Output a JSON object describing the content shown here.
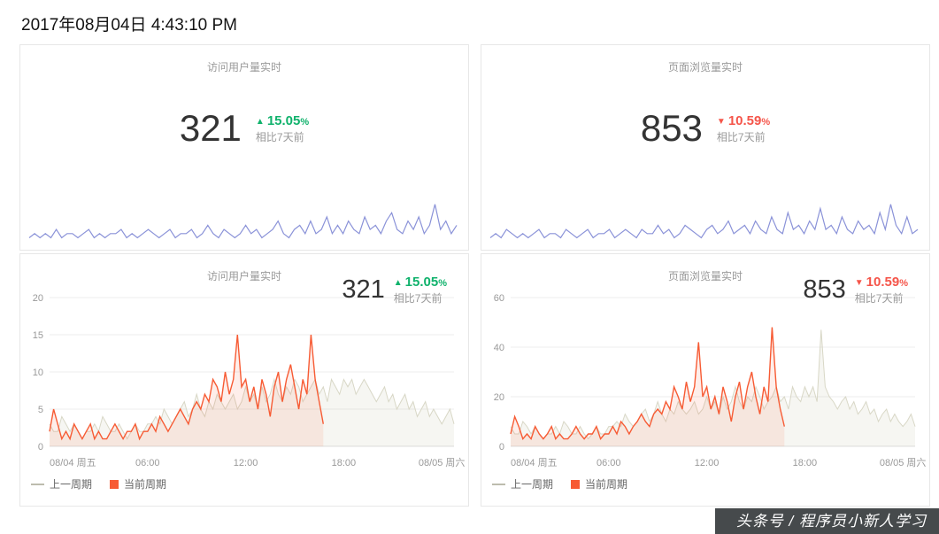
{
  "header": {
    "timestamp": "2017年08月04日 4:43:10 PM"
  },
  "watermark": {
    "text": "头条号 / 程序员小新人学习"
  },
  "icons": {
    "up": "▲",
    "down": "▼"
  },
  "colors": {
    "up": "#10b26c",
    "down": "#f5554a",
    "current": "#f75b34",
    "previous": "#d8d7c6",
    "previous_legend": "#bdbcae",
    "spark": "#8a92d8"
  },
  "kpi": {
    "visitors": {
      "title": "访问用户量实时",
      "value": "321",
      "delta": "15.05",
      "unit": "%",
      "direction": "up",
      "compare": "相比7天前"
    },
    "pageviews": {
      "title": "页面浏览量实时",
      "value": "853",
      "delta": "10.59",
      "unit": "%",
      "direction": "down",
      "compare": "相比7天前"
    }
  },
  "legend": {
    "previous": "上一周期",
    "current": "当前周期"
  },
  "chart_data": [
    {
      "type": "line",
      "title": "访问用户量实时",
      "color_key": "spark",
      "ylim": [
        0,
        11
      ],
      "grid": false,
      "series": [
        {
          "name": "访问用户量",
          "values": [
            2,
            3,
            2,
            3,
            2,
            4,
            2,
            3,
            3,
            2,
            3,
            4,
            2,
            3,
            2,
            3,
            3,
            4,
            2,
            3,
            2,
            3,
            4,
            3,
            2,
            3,
            4,
            2,
            3,
            3,
            4,
            2,
            3,
            5,
            3,
            2,
            4,
            3,
            2,
            3,
            5,
            3,
            4,
            2,
            3,
            4,
            6,
            3,
            2,
            4,
            5,
            3,
            6,
            3,
            4,
            7,
            3,
            5,
            3,
            6,
            4,
            3,
            7,
            4,
            5,
            3,
            6,
            8,
            4,
            3,
            6,
            4,
            7,
            3,
            5,
            10,
            4,
            6,
            3,
            5
          ]
        }
      ]
    },
    {
      "type": "line",
      "title": "页面浏览量实时",
      "color_key": "spark",
      "ylim": [
        0,
        11
      ],
      "grid": false,
      "series": [
        {
          "name": "页面浏览量",
          "values": [
            2,
            3,
            2,
            4,
            3,
            2,
            3,
            2,
            3,
            4,
            2,
            3,
            3,
            2,
            4,
            3,
            2,
            3,
            4,
            2,
            3,
            3,
            4,
            2,
            3,
            4,
            3,
            2,
            4,
            3,
            3,
            5,
            3,
            4,
            2,
            3,
            5,
            4,
            3,
            2,
            4,
            5,
            3,
            4,
            6,
            3,
            4,
            5,
            3,
            6,
            4,
            3,
            7,
            4,
            3,
            8,
            4,
            5,
            3,
            6,
            4,
            9,
            4,
            5,
            3,
            7,
            4,
            3,
            6,
            4,
            5,
            3,
            8,
            4,
            10,
            5,
            3,
            7,
            3,
            4
          ]
        }
      ]
    },
    {
      "type": "line",
      "title": "访问用户量实时",
      "points": 100,
      "ylim": [
        0,
        20
      ],
      "y_ticks": [
        0,
        5,
        10,
        15,
        20
      ],
      "x_tick_labels": [
        "08/04 周五",
        "06:00",
        "12:00",
        "18:00",
        "08/05 周六"
      ],
      "x_tick_indices": [
        0,
        24,
        48,
        72,
        96
      ],
      "grid": true,
      "legend_position": "bottom-left",
      "series": [
        {
          "name": "上一周期",
          "color_key": "previous",
          "values": [
            3,
            2,
            2,
            4,
            3,
            2,
            3,
            2,
            1,
            2,
            2,
            3,
            2,
            4,
            3,
            2,
            2,
            3,
            2,
            1,
            2,
            3,
            2,
            2,
            3,
            3,
            4,
            3,
            5,
            4,
            3,
            4,
            5,
            6,
            4,
            5,
            7,
            5,
            4,
            6,
            5,
            7,
            6,
            5,
            6,
            7,
            5,
            6,
            8,
            6,
            7,
            5,
            8,
            6,
            7,
            9,
            7,
            6,
            8,
            7,
            9,
            8,
            6,
            7,
            8,
            9,
            7,
            8,
            6,
            9,
            8,
            7,
            9,
            8,
            9,
            7,
            8,
            9,
            8,
            7,
            6,
            7,
            8,
            6,
            7,
            5,
            6,
            7,
            5,
            6,
            4,
            5,
            6,
            4,
            5,
            4,
            3,
            4,
            5,
            3
          ]
        },
        {
          "name": "当前周期",
          "color_key": "current",
          "values": [
            2,
            5,
            3,
            1,
            2,
            1,
            3,
            2,
            1,
            2,
            3,
            1,
            2,
            1,
            1,
            2,
            3,
            2,
            1,
            2,
            2,
            3,
            1,
            2,
            2,
            3,
            2,
            4,
            3,
            2,
            3,
            4,
            5,
            4,
            3,
            5,
            6,
            5,
            7,
            6,
            9,
            8,
            6,
            10,
            7,
            9,
            15,
            8,
            9,
            6,
            8,
            5,
            9,
            7,
            4,
            8,
            10,
            6,
            9,
            11,
            8,
            5,
            9,
            7,
            15,
            9,
            6,
            3
          ]
        }
      ]
    },
    {
      "type": "line",
      "title": "页面浏览量实时",
      "points": 100,
      "ylim": [
        0,
        60
      ],
      "y_ticks": [
        0,
        20,
        40,
        60
      ],
      "x_tick_labels": [
        "08/04 周五",
        "06:00",
        "12:00",
        "18:00",
        "08/05 周六"
      ],
      "x_tick_indices": [
        0,
        24,
        48,
        72,
        96
      ],
      "grid": true,
      "legend_position": "bottom-left",
      "series": [
        {
          "name": "上一周期",
          "color_key": "previous",
          "values": [
            8,
            5,
            5,
            10,
            8,
            5,
            8,
            5,
            3,
            5,
            5,
            8,
            5,
            10,
            8,
            5,
            5,
            8,
            5,
            3,
            5,
            8,
            5,
            5,
            8,
            8,
            10,
            8,
            13,
            10,
            8,
            10,
            13,
            15,
            10,
            13,
            18,
            13,
            10,
            15,
            13,
            18,
            15,
            13,
            15,
            18,
            13,
            15,
            20,
            15,
            18,
            13,
            20,
            15,
            18,
            24,
            18,
            15,
            20,
            18,
            24,
            20,
            15,
            18,
            20,
            24,
            18,
            20,
            15,
            24,
            20,
            18,
            24,
            20,
            24,
            18,
            47,
            24,
            20,
            18,
            15,
            18,
            20,
            15,
            18,
            13,
            15,
            18,
            13,
            15,
            10,
            13,
            15,
            10,
            13,
            10,
            8,
            10,
            13,
            8
          ]
        },
        {
          "name": "当前周期",
          "color_key": "current",
          "values": [
            5,
            12,
            8,
            3,
            5,
            3,
            8,
            5,
            3,
            5,
            8,
            3,
            5,
            3,
            3,
            5,
            8,
            5,
            3,
            5,
            5,
            8,
            3,
            5,
            5,
            8,
            5,
            10,
            8,
            5,
            8,
            10,
            13,
            10,
            8,
            13,
            15,
            13,
            18,
            15,
            24,
            20,
            15,
            26,
            18,
            24,
            42,
            20,
            24,
            15,
            20,
            13,
            24,
            18,
            10,
            20,
            26,
            15,
            24,
            30,
            20,
            13,
            24,
            18,
            48,
            24,
            15,
            8
          ]
        }
      ]
    }
  ]
}
